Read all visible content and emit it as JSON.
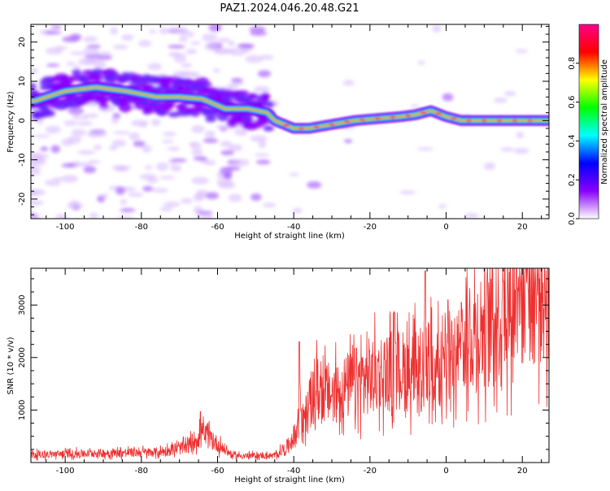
{
  "figure": {
    "title": "PAZ1.2024.046.20.48.G21"
  },
  "chart_data": [
    {
      "type": "heatmap",
      "xlabel": "Height of straight line (km)",
      "ylabel": "Frequency (Hz)",
      "xlim": [
        -109,
        27
      ],
      "ylim": [
        -25,
        24.5
      ],
      "xticks": [
        -100,
        -80,
        -60,
        -40,
        -20,
        0,
        20
      ],
      "yticks": [
        -20,
        -10,
        0,
        10,
        20
      ],
      "ridge": [
        {
          "x": -108,
          "y": 5
        },
        {
          "x": -100,
          "y": 7.5
        },
        {
          "x": -92,
          "y": 8.5
        },
        {
          "x": -84,
          "y": 7.5
        },
        {
          "x": -76,
          "y": 6
        },
        {
          "x": -70,
          "y": 6
        },
        {
          "x": -64,
          "y": 5.5
        },
        {
          "x": -58,
          "y": 3
        },
        {
          "x": -52,
          "y": 3
        },
        {
          "x": -47,
          "y": 2
        },
        {
          "x": -45,
          "y": 0
        },
        {
          "x": -40,
          "y": -2
        },
        {
          "x": -36,
          "y": -2
        },
        {
          "x": -30,
          "y": -1
        },
        {
          "x": -24,
          "y": 0
        },
        {
          "x": -18,
          "y": 0.5
        },
        {
          "x": -12,
          "y": 1
        },
        {
          "x": -8,
          "y": 1.5
        },
        {
          "x": -4,
          "y": 2.5
        },
        {
          "x": 0,
          "y": 1
        },
        {
          "x": 4,
          "y": 0
        },
        {
          "x": 10,
          "y": 0
        },
        {
          "x": 20,
          "y": 0
        },
        {
          "x": 27,
          "y": 0
        }
      ],
      "colorbar": {
        "label": "Normalized spectral amplitude",
        "range": [
          0,
          1
        ],
        "ticks": [
          0.0,
          0.2,
          0.4,
          0.6,
          0.8
        ],
        "tick_labels": [
          "0.0",
          "0.2",
          "0.4",
          "0.6",
          "0.8"
        ],
        "colors": [
          "#ffffff",
          "#8800ff",
          "#0000ff",
          "#00ffff",
          "#00ff00",
          "#ffff00",
          "#ff0000",
          "#ff0088"
        ]
      }
    },
    {
      "type": "line",
      "xlabel": "Height of straight line (km)",
      "ylabel": "SNR (10 * v/v)",
      "xlim": [
        -109,
        27
      ],
      "ylim": [
        0,
        3700
      ],
      "xticks": [
        -100,
        -80,
        -60,
        -40,
        -20,
        0,
        20
      ],
      "yticks": [
        1000,
        2000,
        3000
      ],
      "color": "#ee3030",
      "envelope": [
        {
          "x": -109,
          "y": 150
        },
        {
          "x": -90,
          "y": 180
        },
        {
          "x": -75,
          "y": 200
        },
        {
          "x": -68,
          "y": 300
        },
        {
          "x": -64,
          "y": 550
        },
        {
          "x": -60,
          "y": 350
        },
        {
          "x": -56,
          "y": 130
        },
        {
          "x": -45,
          "y": 130
        },
        {
          "x": -42,
          "y": 280
        },
        {
          "x": -38,
          "y": 700
        },
        {
          "x": -34,
          "y": 1400
        },
        {
          "x": -30,
          "y": 1300
        },
        {
          "x": -26,
          "y": 1450
        },
        {
          "x": -20,
          "y": 1650
        },
        {
          "x": -15,
          "y": 1750
        },
        {
          "x": -10,
          "y": 1750
        },
        {
          "x": -6,
          "y": 1900
        },
        {
          "x": -2,
          "y": 1900
        },
        {
          "x": 2,
          "y": 2050
        },
        {
          "x": 6,
          "y": 2400
        },
        {
          "x": 10,
          "y": 2600
        },
        {
          "x": 14,
          "y": 2850
        },
        {
          "x": 18,
          "y": 3100
        },
        {
          "x": 22,
          "y": 3250
        },
        {
          "x": 27,
          "y": 3400
        }
      ],
      "spikes": [
        {
          "x": -64.5,
          "y": 970
        },
        {
          "x": -38.5,
          "y": 2300
        },
        {
          "x": -13.5,
          "y": 2850
        },
        {
          "x": -5.5,
          "y": 3650
        },
        {
          "x": 0.5,
          "y": 3100
        },
        {
          "x": 4,
          "y": 3050
        },
        {
          "x": 15,
          "y": 3450
        },
        {
          "x": 18.5,
          "y": 3700
        },
        {
          "x": 21,
          "y": 3700
        }
      ]
    }
  ]
}
